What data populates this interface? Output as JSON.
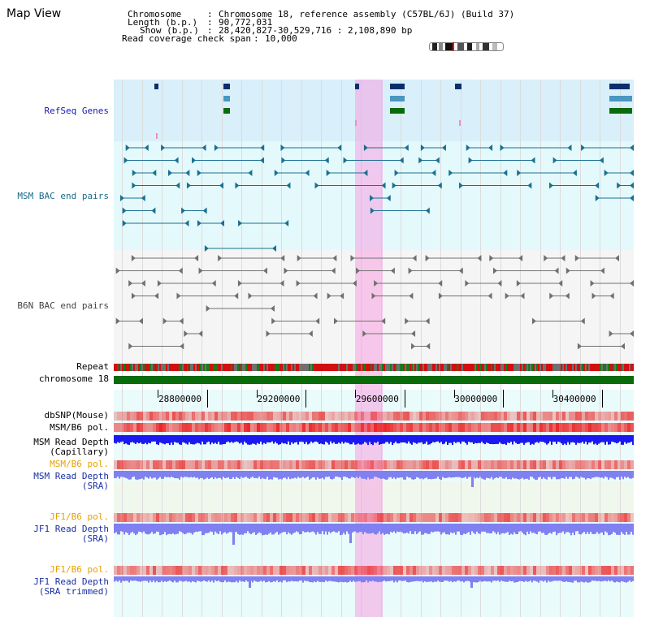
{
  "page": {
    "title": "Map View"
  },
  "info": {
    "chromosome_label": "Chromosome",
    "chromosome_value": "Chromosome 18, reference assembly (C57BL/6J) (Build 37)",
    "length_label": "Length (b.p.)",
    "length_value": "90,772,031",
    "show_label": "Show (b.p.)",
    "show_value": "28,420,827-30,529,716 : 2,108,890 bp",
    "coverage_label": "Read coverage check span",
    "coverage_value": "10,000"
  },
  "tracks": {
    "refseq": "RefSeq Genes",
    "msm_bac": "MSM BAC end pairs",
    "b6n_bac": "B6N BAC end pairs",
    "repeat": "Repeat",
    "chromosome": "chromosome 18",
    "dbsnp": "dbSNP(Mouse)",
    "msm_b6_pol": "MSM/B6 pol.",
    "msm_depth_cap_1": "MSM Read Depth",
    "msm_depth_cap_2": "(Capillary)",
    "msm_b6_pol_2": "MSM/B6 pol.",
    "msm_depth_sra_1": "MSM Read Depth",
    "msm_depth_sra_2": "(SRA)",
    "jf1_b6_pol": "JF1/B6 pol.",
    "jf1_depth_sra_1": "JF1 Read Depth",
    "jf1_depth_sra_2": "(SRA)",
    "jf1_b6_pol_2": "JF1/B6 pol.",
    "jf1_depth_trim_1": "JF1 Read Depth",
    "jf1_depth_trim_2": "(SRA trimmed)"
  },
  "scale": {
    "start": 28420827,
    "end": 30529716,
    "ticks": [
      28800000,
      29200000,
      29600000,
      30000000,
      30400000
    ],
    "tick_labels": [
      "28800000",
      "29200000",
      "29600000",
      "30000000",
      "30400000"
    ]
  },
  "highlight": {
    "start": 29400000,
    "end": 29510000
  },
  "colors": {
    "refseq_bg": "#d9effa",
    "msm_bg": "#e4f9fc",
    "b6n_bg": "#f5f5f5",
    "lower_bg": "#e9fbfb",
    "highlight": "#f5a0e1",
    "gene_dark": "#0a2f6b",
    "gene_mid": "#4a97c0",
    "gene_green": "#0a6b0a",
    "msm_feature": "#1a7090",
    "b6n_feature": "#707070",
    "chromosome_bar": "#0a6b0a",
    "depth_blue": "#1a1af0",
    "depth_light": "#8080f0",
    "label_blue": "#1a2fa0",
    "label_orange": "#e8a000"
  }
}
